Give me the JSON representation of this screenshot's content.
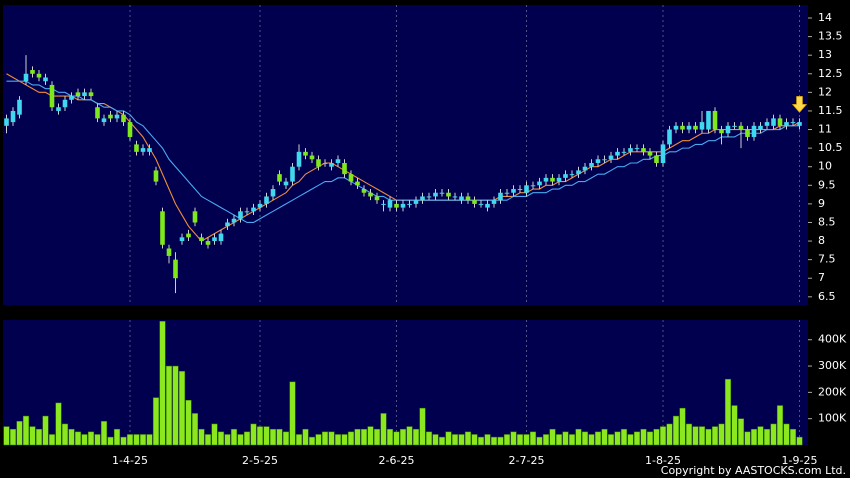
{
  "chart_data": [
    {
      "type": "candlestick",
      "open": [
        11.1,
        11.2,
        11.4,
        12.3,
        12.6,
        12.5,
        12.3,
        12.2,
        11.5,
        11.6,
        11.8,
        12.0,
        11.9,
        12.0,
        11.6,
        11.2,
        11.4,
        11.3,
        11.4,
        11.2,
        10.6,
        10.4,
        10.4,
        9.9,
        8.8,
        7.8,
        7.5,
        8.0,
        8.2,
        8.8,
        8.1,
        8.0,
        8.0,
        8.0,
        8.4,
        8.5,
        8.6,
        8.8,
        8.8,
        8.9,
        9.0,
        9.2,
        9.8,
        9.5,
        9.6,
        10.0,
        10.4,
        10.3,
        10.2,
        10.1,
        10.0,
        10.1,
        10.1,
        9.8,
        9.6,
        9.4,
        9.3,
        9.2,
        9.0,
        8.9,
        9.0,
        8.9,
        9.0,
        9.0,
        9.1,
        9.2,
        9.2,
        9.3,
        9.3,
        9.2,
        9.1,
        9.2,
        9.1,
        9.0,
        8.9,
        9.0,
        9.1,
        9.3,
        9.3,
        9.4,
        9.3,
        9.5,
        9.5,
        9.6,
        9.7,
        9.6,
        9.7,
        9.8,
        9.8,
        9.9,
        10.0,
        10.1,
        10.2,
        10.2,
        10.3,
        10.4,
        10.4,
        10.5,
        10.5,
        10.4,
        10.3,
        10.1,
        10.6,
        11.0,
        11.1,
        11.0,
        11.1,
        11.0,
        11.0,
        11.5,
        11.0,
        10.9,
        11.1,
        11.1,
        11.0,
        10.8,
        11.0,
        11.1,
        11.1,
        11.3,
        11.1,
        11.2,
        11.1
      ],
      "high": [
        11.4,
        11.6,
        11.9,
        13.0,
        12.7,
        12.6,
        12.5,
        12.3,
        11.7,
        11.9,
        12.0,
        12.1,
        12.1,
        12.1,
        11.7,
        11.4,
        11.5,
        11.5,
        11.5,
        11.3,
        10.7,
        10.6,
        10.6,
        10.0,
        8.9,
        7.9,
        7.7,
        8.2,
        8.3,
        8.9,
        8.2,
        8.1,
        8.2,
        8.3,
        8.6,
        8.7,
        8.9,
        8.9,
        9.0,
        9.1,
        9.3,
        9.5,
        9.9,
        9.7,
        10.1,
        10.6,
        10.5,
        10.4,
        10.3,
        10.2,
        10.2,
        10.3,
        10.2,
        9.9,
        9.7,
        9.5,
        9.4,
        9.3,
        9.1,
        9.2,
        9.1,
        9.1,
        9.1,
        9.2,
        9.3,
        9.3,
        9.4,
        9.4,
        9.4,
        9.3,
        9.3,
        9.3,
        9.2,
        9.1,
        9.1,
        9.2,
        9.4,
        9.4,
        9.5,
        9.5,
        9.6,
        9.6,
        9.7,
        9.8,
        9.8,
        9.8,
        9.9,
        9.9,
        10.0,
        10.1,
        10.2,
        10.3,
        10.3,
        10.4,
        10.5,
        10.5,
        10.6,
        10.6,
        10.6,
        10.5,
        10.4,
        10.7,
        11.1,
        11.2,
        11.2,
        11.2,
        11.2,
        11.5,
        11.5,
        11.6,
        11.1,
        11.2,
        11.2,
        11.2,
        11.1,
        11.2,
        11.2,
        11.3,
        11.4,
        11.4,
        11.3,
        11.3,
        11.3
      ],
      "low": [
        10.9,
        11.1,
        11.3,
        12.2,
        12.4,
        12.3,
        12.2,
        11.5,
        11.4,
        11.5,
        11.7,
        11.8,
        11.8,
        11.8,
        11.2,
        11.1,
        11.2,
        11.2,
        11.1,
        10.7,
        10.3,
        10.3,
        10.3,
        9.5,
        7.8,
        7.4,
        6.6,
        7.9,
        8.0,
        8.4,
        7.9,
        7.8,
        7.9,
        7.9,
        8.3,
        8.4,
        8.5,
        8.7,
        8.7,
        8.8,
        8.9,
        9.1,
        9.5,
        9.4,
        9.5,
        9.9,
        10.2,
        10.1,
        9.9,
        10.0,
        9.9,
        10.0,
        9.7,
        9.5,
        9.4,
        9.2,
        9.1,
        9.0,
        8.8,
        8.8,
        8.8,
        8.8,
        8.9,
        8.9,
        9.0,
        9.1,
        9.1,
        9.2,
        9.1,
        9.1,
        9.0,
        9.0,
        8.9,
        8.9,
        8.8,
        8.9,
        9.0,
        9.2,
        9.2,
        9.3,
        9.2,
        9.4,
        9.4,
        9.5,
        9.5,
        9.5,
        9.6,
        9.7,
        9.7,
        9.8,
        9.9,
        10.0,
        10.1,
        10.1,
        10.2,
        10.3,
        10.3,
        10.4,
        10.3,
        10.2,
        10.0,
        10.0,
        10.5,
        10.9,
        10.9,
        10.9,
        10.9,
        10.9,
        10.9,
        10.9,
        10.6,
        10.8,
        11.0,
        10.5,
        10.7,
        10.7,
        10.9,
        11.0,
        11.0,
        11.0,
        11.0,
        11.1,
        11.0
      ],
      "close": [
        11.3,
        11.5,
        11.8,
        12.5,
        12.5,
        12.4,
        12.4,
        11.6,
        11.6,
        11.8,
        11.9,
        11.9,
        12.0,
        11.9,
        11.3,
        11.3,
        11.3,
        11.4,
        11.2,
        10.8,
        10.4,
        10.5,
        10.5,
        9.6,
        7.9,
        7.6,
        7.0,
        8.1,
        8.1,
        8.5,
        8.0,
        7.9,
        8.1,
        8.2,
        8.5,
        8.6,
        8.8,
        8.8,
        8.9,
        9.0,
        9.2,
        9.4,
        9.6,
        9.6,
        10.0,
        10.4,
        10.3,
        10.2,
        10.0,
        10.1,
        10.1,
        10.2,
        9.8,
        9.6,
        9.5,
        9.3,
        9.2,
        9.1,
        9.0,
        9.1,
        8.9,
        9.0,
        9.0,
        9.1,
        9.2,
        9.2,
        9.3,
        9.3,
        9.2,
        9.2,
        9.2,
        9.1,
        9.0,
        9.0,
        9.0,
        9.1,
        9.3,
        9.3,
        9.4,
        9.4,
        9.5,
        9.5,
        9.6,
        9.7,
        9.6,
        9.7,
        9.8,
        9.8,
        9.9,
        10.0,
        10.1,
        10.2,
        10.2,
        10.3,
        10.4,
        10.4,
        10.5,
        10.5,
        10.4,
        10.3,
        10.1,
        10.6,
        11.0,
        11.1,
        11.0,
        11.1,
        11.0,
        11.2,
        11.5,
        11.0,
        10.9,
        11.1,
        11.1,
        11.0,
        10.8,
        11.1,
        11.1,
        11.2,
        11.3,
        11.1,
        11.2,
        11.2,
        11.2
      ],
      "up_color": "#3fd8ee",
      "down_color": "#7ee81a",
      "series": [
        {
          "color": "#f08c3a",
          "values": [
            12.5,
            12.4,
            12.3,
            12.2,
            12.1,
            12.0,
            12.0,
            11.9,
            11.9,
            11.9,
            11.9,
            11.8,
            11.8,
            11.8,
            11.7,
            11.7,
            11.6,
            11.5,
            11.4,
            11.2,
            11.0,
            10.8,
            10.5,
            10.2,
            9.8,
            9.4,
            9.0,
            8.7,
            8.4,
            8.2,
            8.0,
            8.1,
            8.2,
            8.3,
            8.4,
            8.5,
            8.6,
            8.7,
            8.8,
            8.9,
            9.0,
            9.1,
            9.2,
            9.3,
            9.5,
            9.6,
            9.8,
            9.9,
            10.0,
            10.1,
            10.1,
            10.0,
            9.9,
            9.8,
            9.7,
            9.6,
            9.5,
            9.4,
            9.3,
            9.2,
            9.1,
            9.1,
            9.1,
            9.1,
            9.1,
            9.1,
            9.1,
            9.1,
            9.1,
            9.1,
            9.1,
            9.1,
            9.1,
            9.1,
            9.1,
            9.1,
            9.2,
            9.2,
            9.2,
            9.3,
            9.3,
            9.4,
            9.4,
            9.5,
            9.5,
            9.6,
            9.6,
            9.7,
            9.8,
            9.9,
            10.0,
            10.0,
            10.1,
            10.2,
            10.2,
            10.3,
            10.4,
            10.4,
            10.4,
            10.4,
            10.4,
            10.4,
            10.5,
            10.6,
            10.7,
            10.7,
            10.8,
            10.9,
            10.9,
            11.0,
            11.0,
            11.0,
            11.0,
            11.0,
            11.0,
            11.0,
            11.0,
            11.0,
            11.0,
            11.1,
            11.1,
            11.1,
            11.2
          ]
        },
        {
          "color": "#4aa8f0",
          "values": [
            12.3,
            12.3,
            12.3,
            12.3,
            12.2,
            12.2,
            12.1,
            12.1,
            12.0,
            12.0,
            11.9,
            11.9,
            11.8,
            11.8,
            11.7,
            11.6,
            11.6,
            11.5,
            11.5,
            11.4,
            11.2,
            11.1,
            10.9,
            10.7,
            10.5,
            10.2,
            10.0,
            9.8,
            9.6,
            9.4,
            9.2,
            9.1,
            9.0,
            8.9,
            8.8,
            8.7,
            8.6,
            8.5,
            8.5,
            8.6,
            8.7,
            8.8,
            8.9,
            9.0,
            9.1,
            9.2,
            9.3,
            9.4,
            9.5,
            9.6,
            9.6,
            9.7,
            9.7,
            9.6,
            9.5,
            9.4,
            9.3,
            9.2,
            9.2,
            9.1,
            9.1,
            9.1,
            9.1,
            9.1,
            9.1,
            9.1,
            9.1,
            9.1,
            9.1,
            9.1,
            9.1,
            9.1,
            9.1,
            9.1,
            9.1,
            9.1,
            9.1,
            9.1,
            9.2,
            9.2,
            9.2,
            9.3,
            9.3,
            9.3,
            9.4,
            9.4,
            9.5,
            9.5,
            9.6,
            9.6,
            9.7,
            9.8,
            9.8,
            9.9,
            10.0,
            10.0,
            10.1,
            10.1,
            10.2,
            10.2,
            10.3,
            10.3,
            10.4,
            10.4,
            10.5,
            10.5,
            10.6,
            10.6,
            10.7,
            10.7,
            10.8,
            10.8,
            10.8,
            10.9,
            10.9,
            10.9,
            10.9,
            11.0,
            11.0,
            11.0,
            11.1,
            11.1,
            11.1
          ]
        }
      ],
      "ylim": [
        6.28,
        14.35
      ],
      "yticks": [
        6.5,
        7,
        7.5,
        8,
        8.5,
        9,
        9.5,
        10,
        10.5,
        11,
        11.5,
        12,
        12.5,
        13,
        13.5,
        14
      ]
    },
    {
      "type": "bar",
      "categories": [
        null,
        null,
        null,
        null,
        null,
        null,
        null,
        null,
        null,
        null,
        null,
        null,
        null,
        null,
        null,
        null,
        null,
        null,
        null,
        "1-4-25",
        null,
        null,
        null,
        null,
        null,
        null,
        null,
        null,
        null,
        null,
        null,
        null,
        null,
        null,
        null,
        null,
        null,
        null,
        null,
        "2-5-25",
        null,
        null,
        null,
        null,
        null,
        null,
        null,
        null,
        null,
        null,
        null,
        null,
        null,
        null,
        null,
        null,
        null,
        null,
        null,
        null,
        "2-6-25",
        null,
        null,
        null,
        null,
        null,
        null,
        null,
        null,
        null,
        null,
        null,
        null,
        null,
        null,
        null,
        null,
        null,
        null,
        null,
        "2-7-25",
        null,
        null,
        null,
        null,
        null,
        null,
        null,
        null,
        null,
        null,
        null,
        null,
        null,
        null,
        null,
        null,
        null,
        null,
        null,
        null,
        "1-8-25",
        null,
        null,
        null,
        null,
        null,
        null,
        null,
        null,
        null,
        null,
        null,
        null,
        null,
        null,
        null,
        null,
        null,
        null,
        null,
        null,
        "1-9-25"
      ],
      "values": [
        70000,
        60000,
        90000,
        110000,
        70000,
        60000,
        110000,
        40000,
        160000,
        80000,
        60000,
        50000,
        40000,
        50000,
        40000,
        90000,
        30000,
        60000,
        30000,
        40000,
        40000,
        40000,
        40000,
        180000,
        470000,
        300000,
        300000,
        280000,
        170000,
        120000,
        60000,
        40000,
        80000,
        50000,
        40000,
        60000,
        40000,
        50000,
        80000,
        70000,
        70000,
        60000,
        60000,
        50000,
        240000,
        40000,
        60000,
        30000,
        40000,
        50000,
        50000,
        40000,
        40000,
        50000,
        60000,
        60000,
        70000,
        60000,
        120000,
        60000,
        50000,
        60000,
        70000,
        60000,
        140000,
        50000,
        40000,
        30000,
        50000,
        40000,
        40000,
        50000,
        40000,
        30000,
        40000,
        30000,
        30000,
        40000,
        50000,
        40000,
        40000,
        50000,
        30000,
        40000,
        60000,
        40000,
        50000,
        40000,
        60000,
        50000,
        40000,
        50000,
        60000,
        40000,
        50000,
        60000,
        40000,
        50000,
        60000,
        50000,
        60000,
        70000,
        80000,
        110000,
        140000,
        80000,
        70000,
        70000,
        60000,
        70000,
        80000,
        250000,
        150000,
        100000,
        50000,
        60000,
        70000,
        60000,
        80000,
        150000,
        80000,
        60000,
        30000
      ],
      "color": "#8be81e",
      "ylim": [
        0,
        475000
      ],
      "yticks": [
        {
          "value": 100000,
          "label": "100K"
        },
        {
          "value": 200000,
          "label": "200K"
        },
        {
          "value": 300000,
          "label": "300K"
        },
        {
          "value": 400000,
          "label": "400K"
        }
      ]
    }
  ],
  "copyright": "Copyright by AASTOCKS.com Ltd."
}
